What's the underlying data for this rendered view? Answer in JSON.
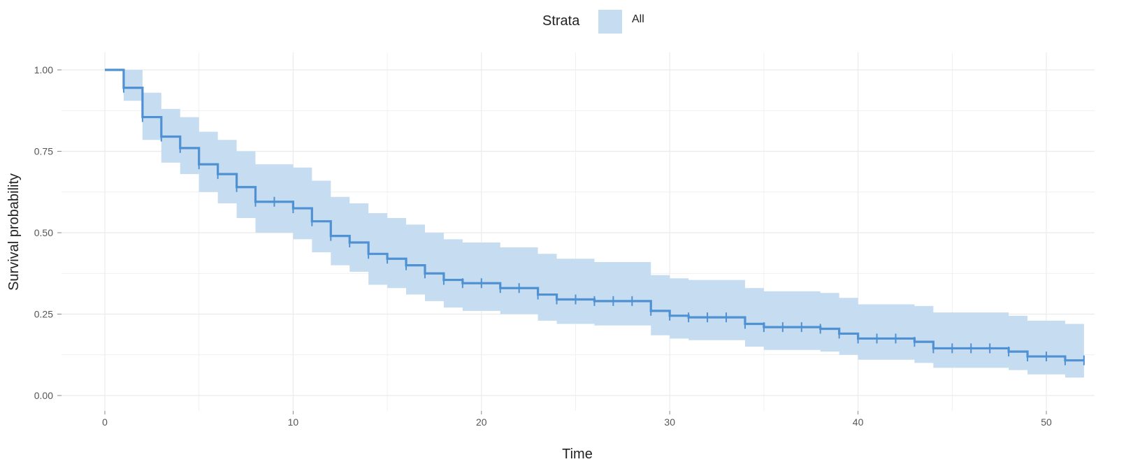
{
  "legend": {
    "title": "Strata",
    "labels": [
      "All"
    ]
  },
  "chart_data": {
    "type": "line",
    "subtype": "kaplan-meier-step",
    "xlabel": "Time",
    "ylabel": "Survival probability",
    "xlim": [
      0,
      52
    ],
    "ylim": [
      0,
      1
    ],
    "x_ticks": [
      0,
      10,
      20,
      30,
      40,
      50
    ],
    "x_tick_labels": [
      "0",
      "10",
      "20",
      "30",
      "40",
      "50"
    ],
    "y_ticks": [
      0,
      0.25,
      0.5,
      0.75,
      1.0
    ],
    "y_tick_labels": [
      "0.00",
      "0.25",
      "0.50",
      "0.75",
      "1.00"
    ],
    "grid": true,
    "legend_position": "top",
    "colors": {
      "line": "#4f91d2",
      "band": "#c6dcf1",
      "grid": "#ebebeb",
      "tick": "#555555"
    },
    "series": [
      {
        "name": "All",
        "steps": [
          {
            "t": 0,
            "s": 1.0,
            "lo": 1.0,
            "hi": 1.0
          },
          {
            "t": 1,
            "s": 0.945,
            "lo": 0.905,
            "hi": 1.0
          },
          {
            "t": 2,
            "s": 0.855,
            "lo": 0.785,
            "hi": 0.93
          },
          {
            "t": 3,
            "s": 0.795,
            "lo": 0.715,
            "hi": 0.88
          },
          {
            "t": 4,
            "s": 0.76,
            "lo": 0.68,
            "hi": 0.855
          },
          {
            "t": 5,
            "s": 0.71,
            "lo": 0.625,
            "hi": 0.81
          },
          {
            "t": 6,
            "s": 0.68,
            "lo": 0.59,
            "hi": 0.785
          },
          {
            "t": 7,
            "s": 0.64,
            "lo": 0.545,
            "hi": 0.75
          },
          {
            "t": 8,
            "s": 0.595,
            "lo": 0.5,
            "hi": 0.71
          },
          {
            "t": 10,
            "s": 0.575,
            "lo": 0.48,
            "hi": 0.7
          },
          {
            "t": 11,
            "s": 0.535,
            "lo": 0.44,
            "hi": 0.66
          },
          {
            "t": 12,
            "s": 0.49,
            "lo": 0.4,
            "hi": 0.61
          },
          {
            "t": 13,
            "s": 0.47,
            "lo": 0.38,
            "hi": 0.59
          },
          {
            "t": 14,
            "s": 0.435,
            "lo": 0.34,
            "hi": 0.56
          },
          {
            "t": 15,
            "s": 0.42,
            "lo": 0.33,
            "hi": 0.545
          },
          {
            "t": 16,
            "s": 0.4,
            "lo": 0.31,
            "hi": 0.525
          },
          {
            "t": 17,
            "s": 0.375,
            "lo": 0.29,
            "hi": 0.5
          },
          {
            "t": 18,
            "s": 0.355,
            "lo": 0.27,
            "hi": 0.48
          },
          {
            "t": 19,
            "s": 0.345,
            "lo": 0.26,
            "hi": 0.47
          },
          {
            "t": 21,
            "s": 0.33,
            "lo": 0.25,
            "hi": 0.455
          },
          {
            "t": 23,
            "s": 0.31,
            "lo": 0.23,
            "hi": 0.435
          },
          {
            "t": 24,
            "s": 0.295,
            "lo": 0.22,
            "hi": 0.42
          },
          {
            "t": 26,
            "s": 0.29,
            "lo": 0.215,
            "hi": 0.41
          },
          {
            "t": 29,
            "s": 0.26,
            "lo": 0.185,
            "hi": 0.37
          },
          {
            "t": 30,
            "s": 0.245,
            "lo": 0.175,
            "hi": 0.36
          },
          {
            "t": 31,
            "s": 0.24,
            "lo": 0.17,
            "hi": 0.355
          },
          {
            "t": 34,
            "s": 0.22,
            "lo": 0.15,
            "hi": 0.33
          },
          {
            "t": 35,
            "s": 0.21,
            "lo": 0.14,
            "hi": 0.32
          },
          {
            "t": 38,
            "s": 0.205,
            "lo": 0.135,
            "hi": 0.315
          },
          {
            "t": 39,
            "s": 0.19,
            "lo": 0.125,
            "hi": 0.3
          },
          {
            "t": 40,
            "s": 0.175,
            "lo": 0.11,
            "hi": 0.28
          },
          {
            "t": 43,
            "s": 0.165,
            "lo": 0.1,
            "hi": 0.275
          },
          {
            "t": 44,
            "s": 0.145,
            "lo": 0.085,
            "hi": 0.255
          },
          {
            "t": 48,
            "s": 0.135,
            "lo": 0.078,
            "hi": 0.245
          },
          {
            "t": 49,
            "s": 0.12,
            "lo": 0.065,
            "hi": 0.23
          },
          {
            "t": 51,
            "s": 0.108,
            "lo": 0.055,
            "hi": 0.22
          }
        ],
        "censor_times": [
          1,
          2,
          3,
          4,
          5,
          6,
          7,
          8,
          9,
          10,
          11,
          12,
          13,
          14,
          15,
          16,
          17,
          18,
          19,
          20,
          21,
          22,
          23,
          24,
          25,
          26,
          27,
          28,
          29,
          30,
          31,
          32,
          33,
          34,
          35,
          36,
          37,
          38,
          39,
          40,
          41,
          42,
          43,
          44,
          45,
          46,
          47,
          48,
          49,
          50,
          51,
          52
        ]
      }
    ]
  }
}
